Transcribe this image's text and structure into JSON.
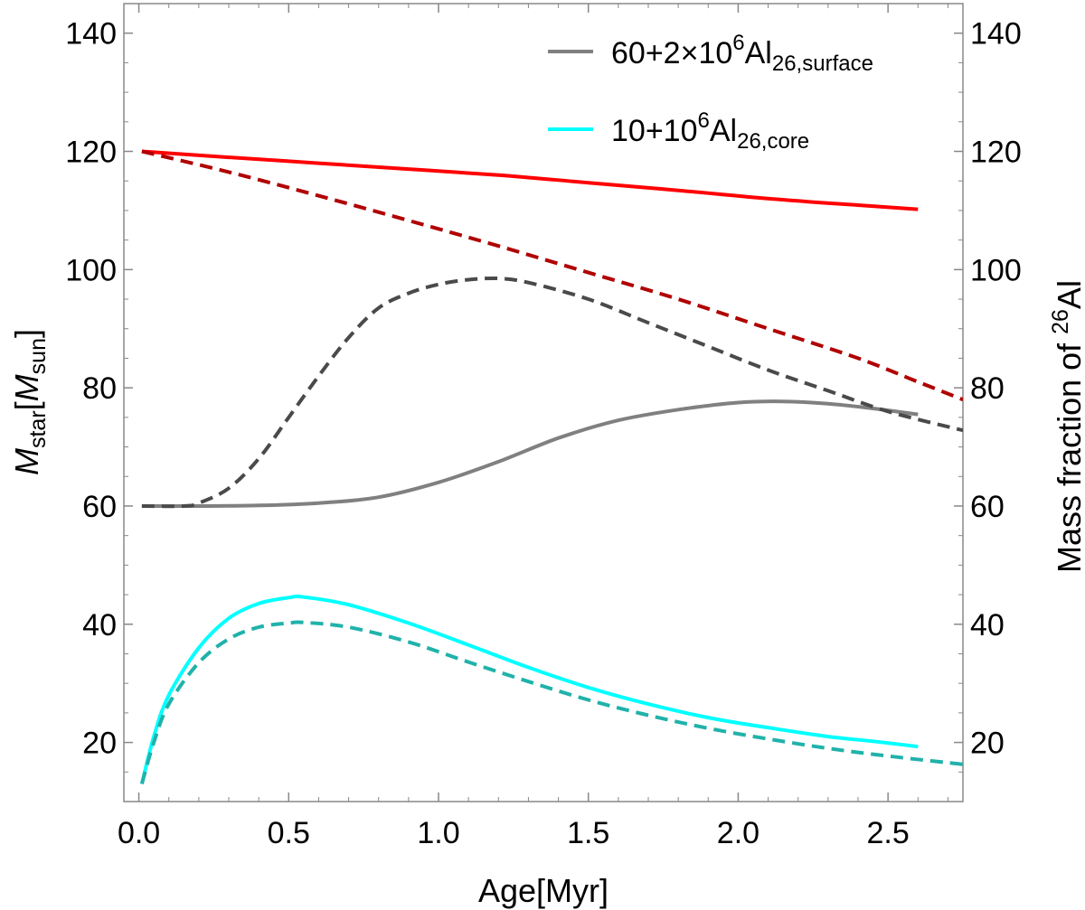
{
  "chart_data": {
    "type": "line",
    "title": "",
    "xlabel": "Age[Myr]",
    "ylabel_left": {
      "italic": "M",
      "sub1": "star",
      "mid": "[",
      "italic2": "M",
      "sub2": "sun",
      "end": "]"
    },
    "ylabel_right": {
      "prefix": "Mass fraction of ",
      "sup": "26",
      "suffix": "Al"
    },
    "xlim": [
      -0.05,
      2.75
    ],
    "ylim": [
      10,
      145
    ],
    "xticks": [
      "0.0",
      "0.5",
      "1.0",
      "1.5",
      "2.0",
      "2.5"
    ],
    "xtick_values": [
      0,
      0.5,
      1.0,
      1.5,
      2.0,
      2.5
    ],
    "yticks": [
      "20",
      "40",
      "60",
      "80",
      "100",
      "120",
      "140"
    ],
    "ytick_values": [
      20,
      40,
      60,
      80,
      100,
      120,
      140
    ],
    "grid": false,
    "legend_position": "top-right",
    "legend": [
      {
        "color": "#808080",
        "main": "60+2×10",
        "sup": "6",
        "base": "Al",
        "sub": "26,surface"
      },
      {
        "color": "#00ffff",
        "main": "10+10",
        "sup": "6",
        "base": "Al",
        "sub": "26,core"
      }
    ],
    "series": [
      {
        "name": "Mstar (solid)",
        "color": "#ff0000",
        "dash": false,
        "x": [
          0.01,
          0.3,
          0.6,
          0.9,
          1.2,
          1.5,
          1.8,
          2.1,
          2.4,
          2.6
        ],
        "y": [
          120,
          119,
          118,
          117,
          116,
          114.7,
          113.4,
          112,
          110.9,
          110.2
        ]
      },
      {
        "name": "Mstar (dashed)",
        "color": "#b00000",
        "dash": true,
        "x": [
          0.01,
          0.3,
          0.6,
          0.9,
          1.2,
          1.5,
          1.8,
          2.1,
          2.4,
          2.6,
          2.75
        ],
        "y": [
          120,
          116.5,
          112.5,
          108.3,
          104,
          99.5,
          95,
          90,
          85,
          81,
          78
        ]
      },
      {
        "name": "60+2e6 Al26 surface (solid)",
        "color": "#808080",
        "dash": false,
        "x": [
          0.01,
          0.2,
          0.4,
          0.6,
          0.8,
          1.0,
          1.2,
          1.4,
          1.6,
          1.8,
          2.0,
          2.15,
          2.3,
          2.45,
          2.6
        ],
        "y": [
          60,
          60,
          60.1,
          60.5,
          61.5,
          64,
          67.5,
          71.5,
          74.5,
          76.3,
          77.5,
          77.7,
          77.3,
          76.5,
          75.5
        ]
      },
      {
        "name": "60+2e6 Al26 surface (dashed)",
        "color": "#4a4a4a",
        "dash": true,
        "x": [
          0.01,
          0.15,
          0.2,
          0.3,
          0.4,
          0.5,
          0.6,
          0.7,
          0.8,
          0.9,
          1.0,
          1.1,
          1.2,
          1.3,
          1.5,
          1.7,
          1.9,
          2.1,
          2.3,
          2.5,
          2.75
        ],
        "y": [
          60,
          60,
          60.5,
          63,
          68,
          75,
          82,
          88.5,
          93.5,
          96,
          97.5,
          98.3,
          98.5,
          97.8,
          95,
          91,
          87,
          83,
          79.5,
          76,
          72.8
        ]
      },
      {
        "name": "10+1e6 Al26 core (solid)",
        "color": "#00ffff",
        "dash": false,
        "x": [
          0.01,
          0.05,
          0.1,
          0.2,
          0.3,
          0.4,
          0.5,
          0.55,
          0.7,
          0.9,
          1.1,
          1.3,
          1.5,
          1.7,
          1.9,
          2.1,
          2.3,
          2.45,
          2.6
        ],
        "y": [
          13,
          21,
          28,
          36,
          41,
          43.5,
          44.5,
          44.6,
          43.3,
          40.2,
          36.5,
          32.7,
          29.3,
          26.5,
          24.2,
          22.5,
          21,
          20.2,
          19.3
        ]
      },
      {
        "name": "10+1e6 Al26 core (dashed)",
        "color": "#20b2aa",
        "dash": true,
        "x": [
          0.01,
          0.05,
          0.1,
          0.2,
          0.3,
          0.4,
          0.5,
          0.55,
          0.7,
          0.9,
          1.1,
          1.3,
          1.5,
          1.7,
          1.9,
          2.1,
          2.3,
          2.5,
          2.75
        ],
        "y": [
          13,
          20,
          26.5,
          33.5,
          37.5,
          39.5,
          40.2,
          40.3,
          39.5,
          37,
          33.6,
          30.3,
          27.2,
          24.6,
          22.4,
          20.6,
          19,
          17.7,
          16.3
        ]
      }
    ]
  }
}
